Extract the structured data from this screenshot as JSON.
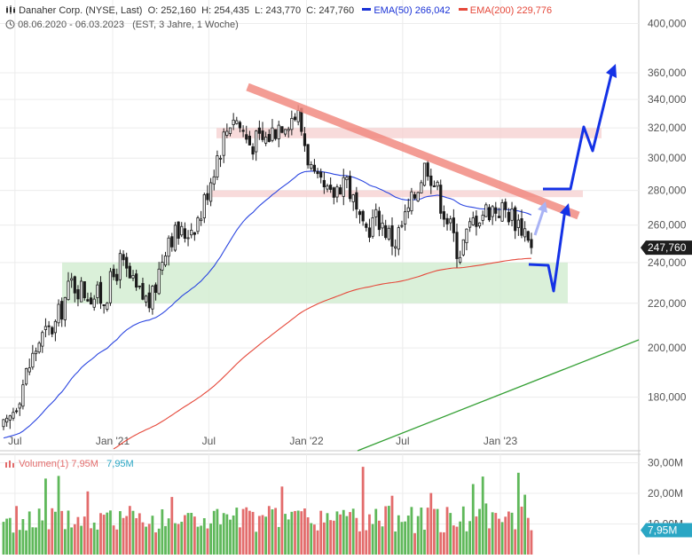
{
  "header": {
    "instrument": "Danaher Corp. (NYSE, Last)",
    "open_label": "O:",
    "open": "252,160",
    "high_label": "H:",
    "high": "254,435",
    "low_label": "L:",
    "low": "243,770",
    "close_label": "C:",
    "close": "247,760",
    "ema50_label": "EMA(50)",
    "ema50_value": "266,042",
    "ema200_label": "EMA(200)",
    "ema200_value": "229,776",
    "date_range": "08.06.2020 - 06.03.2023",
    "period_info": "(EST, 3 Jahre, 1 Woche)"
  },
  "volume_header": {
    "label": "Volumen(1)",
    "value1": "7,95M",
    "value2": "7,95M"
  },
  "colors": {
    "up": "#5fb85a",
    "down": "#e36c6c",
    "ema50": "#2a45e0",
    "ema200": "#e5483a",
    "trend": "#35a035",
    "arrow": "#1432e6",
    "last_price_box": "#1e1e1e",
    "volume_box": "#2aa6c4",
    "support_zone": "#d4edd2",
    "resistance_zone": "#f6d2d2",
    "resistance_line": "#f28b82"
  },
  "chart_data": [
    {
      "type": "candlestick",
      "x_tick_labels": [
        "Jul",
        "Jan '21",
        "Jul",
        "Jan '22",
        "Jul",
        "Jan '23"
      ],
      "y_tick_labels": [
        "400,000",
        "360,000",
        "340,000",
        "320,000",
        "300,000",
        "280,000",
        "260,000",
        "240,000",
        "220,000",
        "200,000",
        "180,000"
      ],
      "y_ticks": [
        400,
        360,
        340,
        320,
        300,
        280,
        260,
        240,
        220,
        200,
        180
      ],
      "y_scale": "log",
      "ylim": [
        163,
        408
      ],
      "last_price": 247.76,
      "last_price_label": "247,760",
      "series": [
        {
          "name": "EMA(50)",
          "value": 266.042
        },
        {
          "name": "EMA(200)",
          "value": 229.776
        }
      ],
      "close_path": [
        {
          "date": "2020-06",
          "close": 168
        },
        {
          "date": "2020-07",
          "close": 185
        },
        {
          "date": "2020-08",
          "close": 203
        },
        {
          "date": "2020-09",
          "close": 210
        },
        {
          "date": "2020-10",
          "close": 230
        },
        {
          "date": "2020-11",
          "close": 225
        },
        {
          "date": "2020-12",
          "close": 222
        },
        {
          "date": "2021-01",
          "close": 240
        },
        {
          "date": "2021-02",
          "close": 225
        },
        {
          "date": "2021-03",
          "close": 220
        },
        {
          "date": "2021-04",
          "close": 255
        },
        {
          "date": "2021-05",
          "close": 255
        },
        {
          "date": "2021-06",
          "close": 265
        },
        {
          "date": "2021-07",
          "close": 300
        },
        {
          "date": "2021-08",
          "close": 330
        },
        {
          "date": "2021-09",
          "close": 310
        },
        {
          "date": "2021-10",
          "close": 312
        },
        {
          "date": "2021-11",
          "close": 325
        },
        {
          "date": "2021-12",
          "close": 330
        },
        {
          "date": "2022-01",
          "close": 285
        },
        {
          "date": "2022-02",
          "close": 275
        },
        {
          "date": "2022-03",
          "close": 290
        },
        {
          "date": "2022-04",
          "close": 255
        },
        {
          "date": "2022-05",
          "close": 265
        },
        {
          "date": "2022-06",
          "close": 250
        },
        {
          "date": "2022-07",
          "close": 270
        },
        {
          "date": "2022-08",
          "close": 298
        },
        {
          "date": "2022-09",
          "close": 270
        },
        {
          "date": "2022-10",
          "close": 245
        },
        {
          "date": "2022-11",
          "close": 265
        },
        {
          "date": "2022-12",
          "close": 270
        },
        {
          "date": "2023-01",
          "close": 268
        },
        {
          "date": "2023-02",
          "close": 258
        },
        {
          "date": "2023-03",
          "close": 247.76
        }
      ],
      "zones": [
        {
          "kind": "support",
          "from": 220,
          "to": 240
        },
        {
          "kind": "resistance",
          "from": 313,
          "to": 320
        },
        {
          "kind": "resistance",
          "from": 276,
          "to": 280
        }
      ]
    },
    {
      "type": "bar",
      "name": "Volumen(1)",
      "y_tick_labels": [
        "30,00M",
        "20,00M",
        "10,00M"
      ],
      "y_ticks": [
        30,
        20,
        10
      ],
      "ylim": [
        0,
        31
      ],
      "last_value": 7.95,
      "last_value_label": "7,95M"
    }
  ]
}
